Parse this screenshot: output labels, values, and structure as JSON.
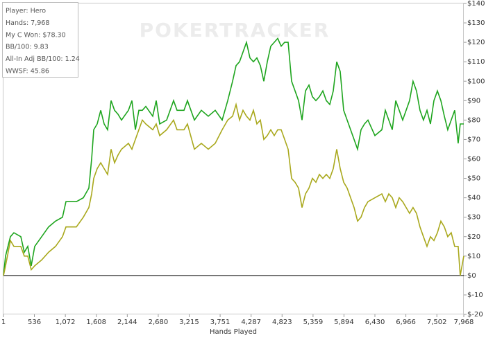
{
  "chart_data": {
    "type": "line",
    "watermark": "POKERTRACKER",
    "info": [
      "Player: Hero",
      "Hands: 7,968",
      "My C Won: $78.30",
      "BB/100: 9.83",
      "All-In Adj BB/100: 1.24",
      "WWSF: 45.86"
    ],
    "xlabel": "Hands Played",
    "xlim": [
      1,
      7968
    ],
    "ylim": [
      -20,
      140
    ],
    "xticks": [
      1,
      536,
      {
        "value": 1072,
        "label": "1,072"
      },
      {
        "value": 1608,
        "label": "1,608"
      },
      {
        "value": 2144,
        "label": "2,144"
      },
      {
        "value": 2680,
        "label": "2,680"
      },
      {
        "value": 3215,
        "label": "3,215"
      },
      {
        "value": 3751,
        "label": "3,751"
      },
      {
        "value": 4287,
        "label": "4,287"
      },
      {
        "value": 4823,
        "label": "4,823"
      },
      {
        "value": 5359,
        "label": "5,359"
      },
      {
        "value": 5894,
        "label": "5,894"
      },
      {
        "value": 6430,
        "label": "6,430"
      },
      {
        "value": 6966,
        "label": "6,966"
      },
      {
        "value": 7502,
        "label": "7,502"
      },
      {
        "value": 7968,
        "label": "7,968"
      }
    ],
    "yticks": [
      {
        "value": -20,
        "label": "$-20"
      },
      {
        "value": -10,
        "label": "$-10"
      },
      {
        "value": 0,
        "label": "$0"
      },
      {
        "value": 10,
        "label": "$10"
      },
      {
        "value": 20,
        "label": "$20"
      },
      {
        "value": 30,
        "label": "$30"
      },
      {
        "value": 40,
        "label": "$40"
      },
      {
        "value": 50,
        "label": "$50"
      },
      {
        "value": 60,
        "label": "$60"
      },
      {
        "value": 70,
        "label": "$70"
      },
      {
        "value": 80,
        "label": "$80"
      },
      {
        "value": 90,
        "label": "$90"
      },
      {
        "value": 100,
        "label": "$100"
      },
      {
        "value": 110,
        "label": "$110"
      },
      {
        "value": 120,
        "label": "$120"
      },
      {
        "value": 130,
        "label": "$130"
      },
      {
        "value": 140,
        "label": "$140"
      }
    ],
    "x": [
      1,
      37,
      121,
      181,
      301,
      361,
      422,
      482,
      542,
      662,
      782,
      902,
      1022,
      1082,
      1143,
      1263,
      1383,
      1479,
      1527,
      1563,
      1623,
      1684,
      1743,
      1803,
      1864,
      1924,
      1984,
      2044,
      2164,
      2224,
      2284,
      2344,
      2404,
      2464,
      2585,
      2645,
      2705,
      2825,
      2945,
      3005,
      3125,
      3185,
      3306,
      3426,
      3546,
      3666,
      3786,
      3882,
      3967,
      4027,
      4087,
      4147,
      4207,
      4267,
      4327,
      4387,
      4447,
      4507,
      4567,
      4627,
      4687,
      4747,
      4808,
      4868,
      4928,
      4988,
      5048,
      5108,
      5168,
      5228,
      5288,
      5348,
      5408,
      5469,
      5529,
      5589,
      5649,
      5709,
      5769,
      5829,
      5889,
      5949,
      6009,
      6069,
      6129,
      6189,
      6250,
      6310,
      6430,
      6550,
      6610,
      6670,
      6730,
      6790,
      6850,
      6910,
      7030,
      7090,
      7150,
      7210,
      7270,
      7331,
      7391,
      7451,
      7511,
      7571,
      7631,
      7691,
      7751,
      7811,
      7871,
      7907,
      7968
    ],
    "series": [
      {
        "color": "#1ea51e",
        "values": [
          0,
          10,
          20,
          22,
          20,
          12,
          15,
          5,
          15,
          20,
          25,
          28,
          30,
          38,
          38,
          38,
          40,
          45,
          60,
          75,
          78,
          85,
          78,
          75,
          90,
          85,
          83,
          80,
          85,
          90,
          75,
          85,
          85,
          87,
          82,
          90,
          78,
          80,
          90,
          85,
          85,
          90,
          80,
          85,
          82,
          85,
          80,
          90,
          100,
          108,
          110,
          115,
          120,
          112,
          110,
          112,
          108,
          100,
          110,
          118,
          120,
          122,
          118,
          120,
          120,
          100,
          95,
          90,
          80,
          95,
          98,
          92,
          90,
          92,
          95,
          90,
          88,
          95,
          110,
          105,
          85,
          80,
          75,
          70,
          65,
          75,
          78,
          80,
          72,
          75,
          85,
          80,
          75,
          90,
          85,
          80,
          90,
          100,
          95,
          85,
          80,
          85,
          78,
          90,
          95,
          90,
          82,
          75,
          80,
          85,
          68,
          78,
          78
        ]
      },
      {
        "color": "#a9a81c",
        "values": [
          0,
          5,
          18,
          15,
          15,
          10,
          10,
          3,
          5,
          8,
          12,
          15,
          20,
          25,
          25,
          25,
          30,
          35,
          42,
          50,
          55,
          58,
          55,
          52,
          65,
          58,
          62,
          65,
          68,
          65,
          70,
          75,
          80,
          78,
          75,
          78,
          72,
          75,
          80,
          75,
          75,
          78,
          65,
          68,
          65,
          68,
          75,
          80,
          82,
          88,
          80,
          85,
          82,
          80,
          85,
          78,
          80,
          70,
          72,
          75,
          72,
          75,
          75,
          70,
          65,
          50,
          48,
          45,
          35,
          42,
          45,
          50,
          48,
          52,
          50,
          52,
          50,
          55,
          65,
          55,
          48,
          45,
          40,
          35,
          28,
          30,
          35,
          38,
          40,
          42,
          38,
          42,
          40,
          35,
          40,
          38,
          32,
          35,
          32,
          25,
          20,
          15,
          20,
          18,
          22,
          28,
          25,
          20,
          22,
          15,
          15,
          0,
          10
        ]
      }
    ]
  }
}
